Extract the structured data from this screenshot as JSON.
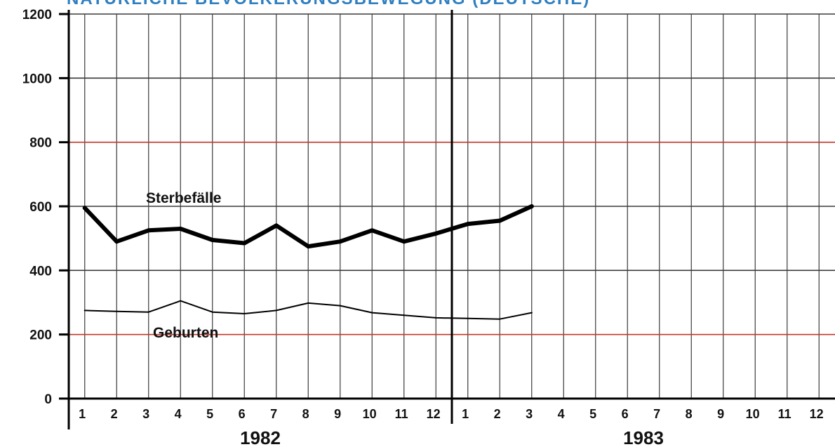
{
  "chart_data": {
    "type": "line",
    "title": "NATÜRLICHE BEVÖLKERUNGSBEWEGUNG (DEUTSCHE)",
    "xlabel": "",
    "ylabel": "",
    "ylim": [
      0,
      1200
    ],
    "y_ticks": [
      "0",
      "200",
      "400",
      "600",
      "800",
      "1000",
      "1200"
    ],
    "grid": true,
    "years": [
      "1982",
      "1983"
    ],
    "months": [
      "1",
      "2",
      "3",
      "4",
      "5",
      "6",
      "7",
      "8",
      "9",
      "10",
      "11",
      "12"
    ],
    "x": [
      "1982-01",
      "1982-02",
      "1982-03",
      "1982-04",
      "1982-05",
      "1982-06",
      "1982-07",
      "1982-08",
      "1982-09",
      "1982-10",
      "1982-11",
      "1982-12",
      "1983-01",
      "1983-02",
      "1983-03"
    ],
    "series": [
      {
        "name": "Sterbefälle",
        "values": [
          595,
          490,
          525,
          530,
          495,
          485,
          540,
          475,
          490,
          525,
          490,
          515,
          545,
          555,
          600
        ]
      },
      {
        "name": "Geburten",
        "values": [
          275,
          272,
          270,
          305,
          270,
          265,
          275,
          298,
          290,
          268,
          260,
          252,
          250,
          248,
          268
        ]
      }
    ],
    "colors": {
      "title": "#2f7fc1",
      "line": "#000000",
      "grid": "#3a3a3a",
      "red_rule": "#c0392b"
    }
  }
}
